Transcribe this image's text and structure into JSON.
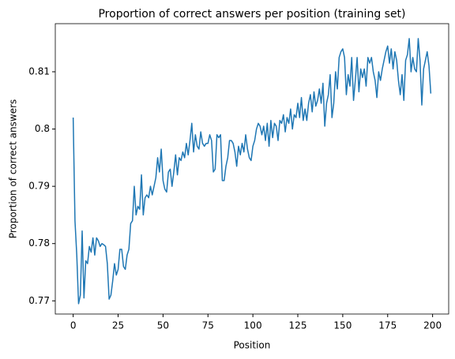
{
  "chart_data": {
    "type": "line",
    "title": "Proportion of correct answers per position (training set)",
    "x_label": "Position",
    "y_label": "Proportion of correct answers",
    "color": "#1f77b4",
    "xlim": [
      -9.95,
      208.95
    ],
    "ylim": [
      0.7677,
      0.8184
    ],
    "xticks": [
      0,
      25,
      50,
      75,
      100,
      125,
      150,
      175,
      200
    ],
    "yticks": [
      0.77,
      0.78,
      0.79,
      0.8,
      0.81
    ],
    "x": [
      0,
      1,
      2,
      3,
      4,
      5,
      6,
      7,
      8,
      9,
      10,
      11,
      12,
      13,
      14,
      15,
      16,
      17,
      18,
      19,
      20,
      21,
      22,
      23,
      24,
      25,
      26,
      27,
      28,
      29,
      30,
      31,
      32,
      33,
      34,
      35,
      36,
      37,
      38,
      39,
      40,
      41,
      42,
      43,
      44,
      45,
      46,
      47,
      48,
      49,
      50,
      51,
      52,
      53,
      54,
      55,
      56,
      57,
      58,
      59,
      60,
      61,
      62,
      63,
      64,
      65,
      66,
      67,
      68,
      69,
      70,
      71,
      72,
      73,
      74,
      75,
      76,
      77,
      78,
      79,
      80,
      81,
      82,
      83,
      84,
      85,
      86,
      87,
      88,
      89,
      90,
      91,
      92,
      93,
      94,
      95,
      96,
      97,
      98,
      99,
      100,
      101,
      102,
      103,
      104,
      105,
      106,
      107,
      108,
      109,
      110,
      111,
      112,
      113,
      114,
      115,
      116,
      117,
      118,
      119,
      120,
      121,
      122,
      123,
      124,
      125,
      126,
      127,
      128,
      129,
      130,
      131,
      132,
      133,
      134,
      135,
      136,
      137,
      138,
      139,
      140,
      141,
      142,
      143,
      144,
      145,
      146,
      147,
      148,
      149,
      150,
      151,
      152,
      153,
      154,
      155,
      156,
      157,
      158,
      159,
      160,
      161,
      162,
      163,
      164,
      165,
      166,
      167,
      168,
      169,
      170,
      171,
      172,
      173,
      174,
      175,
      176,
      177,
      178,
      179,
      180,
      181,
      182,
      183,
      184,
      185,
      186,
      187,
      188,
      189,
      190,
      191,
      192,
      193,
      194,
      195,
      196,
      197,
      198,
      199
    ],
    "values": [
      0.802,
      0.784,
      0.778,
      0.7695,
      0.771,
      0.7822,
      0.7705,
      0.777,
      0.7765,
      0.7795,
      0.7785,
      0.781,
      0.778,
      0.781,
      0.7805,
      0.7795,
      0.78,
      0.7798,
      0.7795,
      0.7765,
      0.7703,
      0.771,
      0.7735,
      0.7765,
      0.7745,
      0.7755,
      0.779,
      0.779,
      0.776,
      0.7755,
      0.778,
      0.779,
      0.7835,
      0.784,
      0.79,
      0.785,
      0.7865,
      0.786,
      0.792,
      0.785,
      0.788,
      0.7885,
      0.788,
      0.79,
      0.7885,
      0.79,
      0.7915,
      0.795,
      0.7925,
      0.7965,
      0.791,
      0.7895,
      0.789,
      0.7925,
      0.793,
      0.79,
      0.7925,
      0.7955,
      0.792,
      0.795,
      0.7945,
      0.796,
      0.795,
      0.7975,
      0.7955,
      0.798,
      0.801,
      0.796,
      0.799,
      0.797,
      0.7965,
      0.7995,
      0.7975,
      0.797,
      0.7975,
      0.7975,
      0.799,
      0.798,
      0.7925,
      0.793,
      0.799,
      0.7985,
      0.799,
      0.791,
      0.791,
      0.7935,
      0.795,
      0.798,
      0.798,
      0.7975,
      0.796,
      0.7935,
      0.797,
      0.7955,
      0.7975,
      0.796,
      0.799,
      0.7965,
      0.795,
      0.7945,
      0.797,
      0.798,
      0.8,
      0.801,
      0.8005,
      0.799,
      0.8005,
      0.798,
      0.801,
      0.797,
      0.8015,
      0.7985,
      0.801,
      0.8005,
      0.798,
      0.8015,
      0.801,
      0.8025,
      0.7995,
      0.802,
      0.801,
      0.8035,
      0.8,
      0.8025,
      0.802,
      0.8045,
      0.802,
      0.8055,
      0.8015,
      0.8035,
      0.8015,
      0.8045,
      0.806,
      0.803,
      0.8065,
      0.804,
      0.805,
      0.807,
      0.8045,
      0.808,
      0.8005,
      0.8045,
      0.806,
      0.8095,
      0.802,
      0.8045,
      0.81,
      0.807,
      0.8125,
      0.8135,
      0.814,
      0.8125,
      0.806,
      0.8095,
      0.8075,
      0.8125,
      0.805,
      0.8085,
      0.8125,
      0.8065,
      0.8105,
      0.809,
      0.8105,
      0.8075,
      0.8125,
      0.8115,
      0.8125,
      0.81,
      0.8085,
      0.8055,
      0.81,
      0.8085,
      0.8105,
      0.812,
      0.8135,
      0.8145,
      0.8115,
      0.814,
      0.8105,
      0.8135,
      0.812,
      0.8085,
      0.806,
      0.8095,
      0.805,
      0.812,
      0.813,
      0.8158,
      0.81,
      0.8125,
      0.8105,
      0.81,
      0.8158,
      0.812,
      0.8042,
      0.8105,
      0.812,
      0.8135,
      0.811,
      0.8062
    ]
  }
}
